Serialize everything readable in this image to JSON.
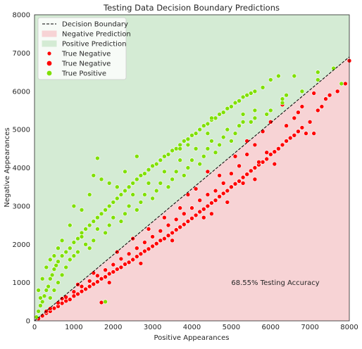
{
  "chart_data": {
    "type": "scatter",
    "title": "Testing Data Decision Boundary Predictions",
    "xlabel": "Positive Appearances",
    "ylabel": "Negative Appearances",
    "xlim": [
      0,
      8000
    ],
    "ylim": [
      0,
      8000
    ],
    "xticks": [
      "0",
      "1000",
      "2000",
      "3000",
      "4000",
      "5000",
      "6000",
      "7000",
      "8000"
    ],
    "yticks": [
      "0",
      "1000",
      "2000",
      "3000",
      "4000",
      "5000",
      "6000",
      "7000",
      "8000"
    ],
    "grid": false,
    "legend_position": "top-left",
    "decision_boundary": {
      "label": "Decision Boundary",
      "slope": 0.8625,
      "intercept": 0,
      "style": "dashed",
      "color": "#000000"
    },
    "regions": [
      {
        "label": "Negative Prediction",
        "color": "#f7d3d5",
        "side": "below"
      },
      {
        "label": "Positive Prediction",
        "color": "#d4ebd4",
        "side": "above"
      }
    ],
    "series": [
      {
        "name": "True Negative",
        "color": "#ff0000",
        "legend_marker": "small"
      },
      {
        "name": "True Negative",
        "color": "#ff0000",
        "legend_marker": "large",
        "points": [
          [
            100,
            60
          ],
          [
            200,
            130
          ],
          [
            300,
            200
          ],
          [
            400,
            250
          ],
          [
            500,
            330
          ],
          [
            600,
            380
          ],
          [
            700,
            460
          ],
          [
            800,
            520
          ],
          [
            900,
            560
          ],
          [
            1000,
            650
          ],
          [
            1100,
            700
          ],
          [
            1200,
            770
          ],
          [
            1300,
            830
          ],
          [
            1400,
            900
          ],
          [
            1500,
            960
          ],
          [
            1600,
            1020
          ],
          [
            1700,
            1100
          ],
          [
            1800,
            1150
          ],
          [
            1900,
            1230
          ],
          [
            2000,
            1280
          ],
          [
            2100,
            1350
          ],
          [
            2200,
            1400
          ],
          [
            2300,
            1480
          ],
          [
            2400,
            1530
          ],
          [
            2500,
            1600
          ],
          [
            2600,
            1680
          ],
          [
            2700,
            1750
          ],
          [
            2800,
            1820
          ],
          [
            2900,
            1880
          ],
          [
            3000,
            1950
          ],
          [
            3100,
            2020
          ],
          [
            3200,
            2100
          ],
          [
            3300,
            2150
          ],
          [
            3400,
            2230
          ],
          [
            3500,
            2300
          ],
          [
            3600,
            2380
          ],
          [
            3700,
            2450
          ],
          [
            3800,
            2520
          ],
          [
            3900,
            2600
          ],
          [
            4000,
            2680
          ],
          [
            4100,
            2760
          ],
          [
            4200,
            2850
          ],
          [
            4300,
            2920
          ],
          [
            4400,
            3000
          ],
          [
            4500,
            3080
          ],
          [
            4600,
            3150
          ],
          [
            4700,
            3250
          ],
          [
            4800,
            3330
          ],
          [
            4900,
            3400
          ],
          [
            5000,
            3500
          ],
          [
            5100,
            3580
          ],
          [
            5200,
            3650
          ],
          [
            5300,
            3750
          ],
          [
            5400,
            3830
          ],
          [
            5500,
            3920
          ],
          [
            5600,
            4000
          ],
          [
            5700,
            4080
          ],
          [
            5800,
            4150
          ],
          [
            5900,
            4230
          ],
          [
            6000,
            4350
          ],
          [
            6100,
            4420
          ],
          [
            6200,
            4500
          ],
          [
            6300,
            4600
          ],
          [
            6400,
            4700
          ],
          [
            6500,
            4780
          ],
          [
            6600,
            4850
          ],
          [
            6700,
            4950
          ],
          [
            6800,
            5050
          ],
          [
            6900,
            4900
          ],
          [
            7000,
            5200
          ],
          [
            7200,
            5500
          ],
          [
            7300,
            5600
          ],
          [
            7400,
            5800
          ],
          [
            7500,
            5900
          ],
          [
            7700,
            6000
          ],
          [
            7900,
            6200
          ],
          [
            8000,
            6800
          ],
          [
            7100,
            4900
          ],
          [
            6800,
            5600
          ],
          [
            6600,
            5300
          ],
          [
            6300,
            5650
          ],
          [
            6000,
            5200
          ],
          [
            5800,
            4950
          ],
          [
            5600,
            4600
          ],
          [
            5400,
            4350
          ],
          [
            5200,
            4050
          ],
          [
            5000,
            3850
          ],
          [
            4800,
            3600
          ],
          [
            4600,
            3400
          ],
          [
            4400,
            3300
          ],
          [
            4200,
            3150
          ],
          [
            4000,
            2950
          ],
          [
            3800,
            2800
          ],
          [
            3600,
            2650
          ],
          [
            3400,
            2500
          ],
          [
            3200,
            2350
          ],
          [
            3000,
            2200
          ],
          [
            2800,
            2050
          ],
          [
            2600,
            1900
          ],
          [
            2400,
            1750
          ],
          [
            2200,
            1620
          ],
          [
            2000,
            1470
          ],
          [
            1800,
            1330
          ],
          [
            1600,
            1180
          ],
          [
            1400,
            1040
          ],
          [
            1200,
            900
          ],
          [
            1000,
            760
          ],
          [
            800,
            620
          ],
          [
            600,
            470
          ],
          [
            400,
            320
          ],
          [
            1700,
            480
          ],
          [
            4400,
            3900
          ],
          [
            5400,
            4700
          ],
          [
            3900,
            3300
          ],
          [
            4700,
            3800
          ],
          [
            5100,
            4300
          ],
          [
            3300,
            2700
          ],
          [
            2900,
            2400
          ],
          [
            2500,
            2150
          ],
          [
            2100,
            1800
          ],
          [
            1500,
            1250
          ],
          [
            1100,
            950
          ],
          [
            700,
            580
          ],
          [
            300,
            250
          ],
          [
            4900,
            3100
          ],
          [
            5600,
            3700
          ],
          [
            3500,
            2100
          ],
          [
            2700,
            1500
          ],
          [
            1900,
            1000
          ],
          [
            6100,
            4100
          ],
          [
            5900,
            4400
          ],
          [
            4500,
            2800
          ],
          [
            3700,
            2950
          ],
          [
            4100,
            3450
          ],
          [
            6700,
            5450
          ],
          [
            7100,
            5950
          ],
          [
            6400,
            5100
          ],
          [
            5700,
            4150
          ],
          [
            5300,
            3600
          ],
          [
            4300,
            2700
          ]
        ]
      },
      {
        "name": "True Positive",
        "color": "#7fe000",
        "legend_marker": "large",
        "points": [
          [
            50,
            100
          ],
          [
            100,
            250
          ],
          [
            150,
            400
          ],
          [
            200,
            500
          ],
          [
            250,
            650
          ],
          [
            300,
            800
          ],
          [
            350,
            900
          ],
          [
            400,
            1100
          ],
          [
            450,
            1200
          ],
          [
            500,
            1350
          ],
          [
            550,
            1450
          ],
          [
            600,
            1550
          ],
          [
            700,
            1700
          ],
          [
            800,
            1800
          ],
          [
            900,
            1900
          ],
          [
            1000,
            2050
          ],
          [
            1100,
            2150
          ],
          [
            1200,
            2300
          ],
          [
            1300,
            2400
          ],
          [
            1400,
            2500
          ],
          [
            1500,
            2600
          ],
          [
            1600,
            2700
          ],
          [
            1700,
            2800
          ],
          [
            1800,
            2900
          ],
          [
            1900,
            3000
          ],
          [
            2000,
            3100
          ],
          [
            2100,
            3200
          ],
          [
            2200,
            3300
          ],
          [
            2300,
            3400
          ],
          [
            2400,
            3500
          ],
          [
            2500,
            3600
          ],
          [
            2600,
            3700
          ],
          [
            2700,
            3800
          ],
          [
            2800,
            3850
          ],
          [
            2900,
            3950
          ],
          [
            3000,
            4050
          ],
          [
            3100,
            4100
          ],
          [
            3200,
            4200
          ],
          [
            3300,
            4300
          ],
          [
            3400,
            4350
          ],
          [
            3500,
            4450
          ],
          [
            3600,
            4500
          ],
          [
            3700,
            4600
          ],
          [
            3800,
            4700
          ],
          [
            3900,
            4750
          ],
          [
            4000,
            4850
          ],
          [
            4100,
            4900
          ],
          [
            4200,
            5000
          ],
          [
            4300,
            5100
          ],
          [
            4400,
            5150
          ],
          [
            4500,
            5250
          ],
          [
            4600,
            5300
          ],
          [
            4700,
            5400
          ],
          [
            4800,
            5450
          ],
          [
            4900,
            5550
          ],
          [
            5000,
            5600
          ],
          [
            5100,
            5700
          ],
          [
            5200,
            5750
          ],
          [
            5300,
            5850
          ],
          [
            5400,
            5900
          ],
          [
            5500,
            5950
          ],
          [
            5600,
            6000
          ],
          [
            5800,
            6100
          ],
          [
            6000,
            6300
          ],
          [
            6200,
            6400
          ],
          [
            6600,
            6400
          ],
          [
            7200,
            6500
          ],
          [
            7800,
            6200
          ],
          [
            6300,
            5700
          ],
          [
            5600,
            5500
          ],
          [
            5300,
            5400
          ],
          [
            4500,
            5300
          ],
          [
            4400,
            4900
          ],
          [
            3900,
            4600
          ],
          [
            3700,
            4500
          ],
          [
            2600,
            4300
          ],
          [
            1600,
            4250
          ],
          [
            1400,
            3300
          ],
          [
            1500,
            3800
          ],
          [
            1700,
            3700
          ],
          [
            1900,
            3600
          ],
          [
            2100,
            3500
          ],
          [
            2300,
            3900
          ],
          [
            1200,
            2900
          ],
          [
            1000,
            3000
          ],
          [
            900,
            2500
          ],
          [
            700,
            2100
          ],
          [
            600,
            1900
          ],
          [
            500,
            1700
          ],
          [
            400,
            1600
          ],
          [
            300,
            1400
          ],
          [
            200,
            1100
          ],
          [
            100,
            800
          ],
          [
            150,
            600
          ],
          [
            1800,
            500
          ],
          [
            1300,
            2000
          ],
          [
            1100,
            1800
          ],
          [
            900,
            1600
          ],
          [
            800,
            1400
          ],
          [
            700,
            1200
          ],
          [
            600,
            1000
          ],
          [
            500,
            800
          ],
          [
            400,
            600
          ],
          [
            1600,
            2400
          ],
          [
            2000,
            2700
          ],
          [
            2400,
            3000
          ],
          [
            2800,
            3300
          ],
          [
            3200,
            3600
          ],
          [
            3600,
            3900
          ],
          [
            4000,
            4200
          ],
          [
            4400,
            4500
          ],
          [
            4800,
            4800
          ],
          [
            5200,
            5100
          ],
          [
            5600,
            5300
          ],
          [
            6000,
            5500
          ],
          [
            6400,
            5900
          ],
          [
            6800,
            6000
          ],
          [
            7200,
            6300
          ],
          [
            7600,
            6600
          ],
          [
            1500,
            2100
          ],
          [
            1900,
            2500
          ],
          [
            2300,
            2800
          ],
          [
            2700,
            3100
          ],
          [
            3100,
            3400
          ],
          [
            3500,
            3700
          ],
          [
            3900,
            4000
          ],
          [
            4300,
            4300
          ],
          [
            4700,
            4600
          ],
          [
            5100,
            4900
          ],
          [
            5500,
            5200
          ],
          [
            5900,
            5400
          ],
          [
            6300,
            5800
          ],
          [
            1400,
            1900
          ],
          [
            1800,
            2300
          ],
          [
            2200,
            2600
          ],
          [
            2600,
            2900
          ],
          [
            3000,
            3200
          ],
          [
            3400,
            3500
          ],
          [
            3800,
            3800
          ],
          [
            4200,
            4100
          ],
          [
            4600,
            4400
          ],
          [
            5000,
            4700
          ],
          [
            1200,
            2200
          ],
          [
            1000,
            1700
          ],
          [
            2500,
            3300
          ],
          [
            2900,
            3600
          ],
          [
            3300,
            3900
          ],
          [
            3700,
            4200
          ],
          [
            4100,
            4500
          ],
          [
            4500,
            4700
          ],
          [
            4900,
            5000
          ],
          [
            5300,
            5200
          ]
        ]
      }
    ],
    "annotations": [
      {
        "text": "68.55% Testing Accuracy",
        "x": 5000,
        "y": 1000
      }
    ]
  }
}
